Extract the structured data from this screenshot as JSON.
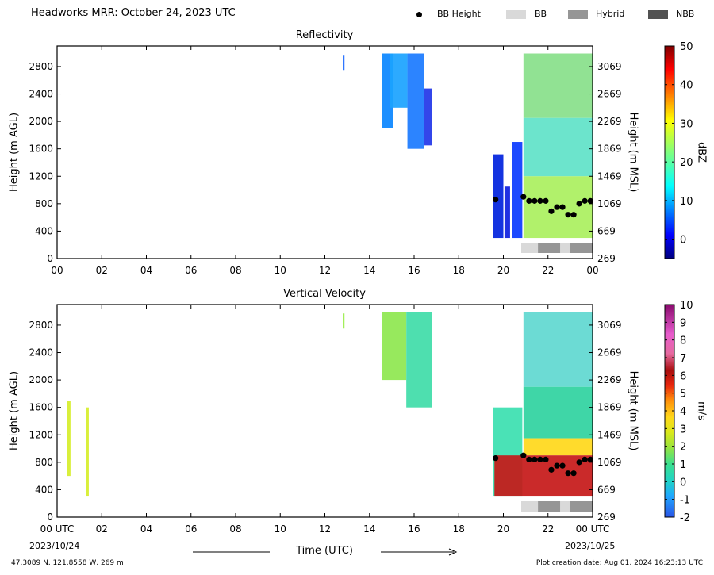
{
  "header": {
    "title": "Headworks MRR:  October 24, 2023 UTC",
    "legend": [
      {
        "label": "BB Height",
        "color": "#000000",
        "kind": "dot"
      },
      {
        "label": "BB",
        "color": "#d9d9d9",
        "kind": "box"
      },
      {
        "label": "Hybrid",
        "color": "#969696",
        "kind": "box"
      },
      {
        "label": "NBB",
        "color": "#525252",
        "kind": "box"
      }
    ]
  },
  "footer": {
    "coords": "47.3089 N, 121.8558 W, 269 m",
    "created": "Plot creation date: Aug 01, 2024 16:23:13 UTC"
  },
  "chart_data": [
    {
      "type": "heatmap",
      "title": "Reflectivity",
      "xlabel": "",
      "ylabel": "Height (m AGL)",
      "y2label": "Height (m MSL)",
      "xlim": [
        0,
        24
      ],
      "ylim": [
        0,
        3100
      ],
      "x_ticks": [
        "00",
        "02",
        "04",
        "06",
        "08",
        "10",
        "12",
        "14",
        "16",
        "18",
        "20",
        "22",
        "00"
      ],
      "y_ticks": [
        0,
        400,
        800,
        1200,
        1600,
        2000,
        2400,
        2800
      ],
      "y2_ticks": [
        269,
        669,
        1069,
        1469,
        1869,
        2269,
        2669,
        3069
      ],
      "colorbar": {
        "label": "dBZ",
        "min": -5,
        "max": 50,
        "ticks": [
          0,
          10,
          20,
          30,
          40,
          50
        ]
      },
      "bb_height": {
        "time_h": [
          19.65,
          20.9,
          21.15,
          21.4,
          21.65,
          21.9,
          22.15,
          22.4,
          22.65,
          22.9,
          23.15,
          23.4,
          23.65,
          23.9
        ],
        "height_m": [
          860,
          900,
          840,
          840,
          840,
          840,
          690,
          750,
          750,
          640,
          640,
          800,
          840,
          840
        ]
      },
      "bb_type": [
        {
          "start_h": 20.8,
          "end_h": 21.55,
          "type": "BB"
        },
        {
          "start_h": 21.55,
          "end_h": 22.55,
          "type": "Hybrid"
        },
        {
          "start_h": 22.55,
          "end_h": 23.0,
          "type": "BB"
        },
        {
          "start_h": 23.0,
          "end_h": 24.0,
          "type": "Hybrid"
        }
      ]
    },
    {
      "type": "heatmap",
      "title": "Vertical Velocity",
      "xlabel": "Time (UTC)",
      "ylabel": "Height (m AGL)",
      "y2label": "Height (m MSL)",
      "xlim": [
        0,
        24
      ],
      "ylim": [
        0,
        3100
      ],
      "x_ticks": [
        "00 UTC",
        "02",
        "04",
        "06",
        "08",
        "10",
        "12",
        "14",
        "16",
        "18",
        "20",
        "22",
        "00 UTC"
      ],
      "x_dates": [
        "2023/10/24",
        "2023/10/25"
      ],
      "y_ticks": [
        0,
        400,
        800,
        1200,
        1600,
        2000,
        2400,
        2800
      ],
      "y2_ticks": [
        269,
        669,
        1069,
        1469,
        1869,
        2269,
        2669,
        3069
      ],
      "colorbar": {
        "label": "m/s",
        "min": -2,
        "max": 10,
        "ticks": [
          -2,
          -1,
          0,
          1,
          2,
          3,
          4,
          5,
          6,
          7,
          8,
          9,
          10
        ]
      },
      "bb_height": {
        "time_h": [
          19.65,
          20.9,
          21.15,
          21.4,
          21.65,
          21.9,
          22.15,
          22.4,
          22.65,
          22.9,
          23.15,
          23.4,
          23.65,
          23.9
        ],
        "height_m": [
          860,
          900,
          840,
          840,
          840,
          840,
          690,
          750,
          750,
          640,
          640,
          800,
          840,
          840
        ]
      },
      "bb_type": [
        {
          "start_h": 20.8,
          "end_h": 21.55,
          "type": "BB"
        },
        {
          "start_h": 21.55,
          "end_h": 22.55,
          "type": "Hybrid"
        },
        {
          "start_h": 22.55,
          "end_h": 23.0,
          "type": "BB"
        },
        {
          "start_h": 23.0,
          "end_h": 24.0,
          "type": "Hybrid"
        }
      ]
    }
  ]
}
